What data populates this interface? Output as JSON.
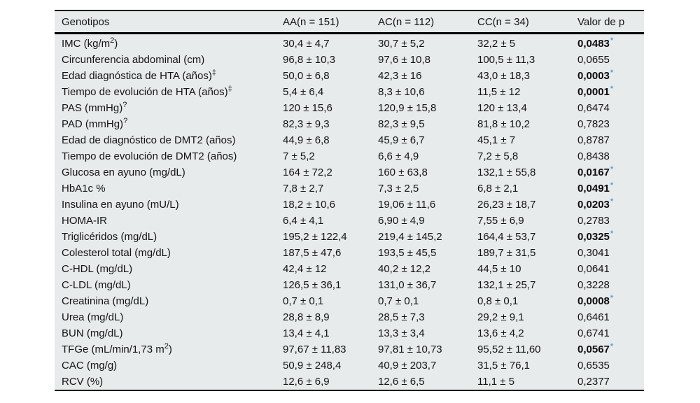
{
  "colors": {
    "table_background": "#e7ebec",
    "rule_color": "#000000",
    "text_color": "#141414",
    "significance_asterisk_blue": "#4da3dc"
  },
  "chart_data": {
    "type": "table",
    "significance_marker": "*",
    "headers": [
      "Genotipos",
      "AA(n = 151)",
      "AC(n = 112)",
      "CC(n = 34)",
      "Valor de p"
    ],
    "rows": [
      {
        "label_parts": [
          {
            "t": "IMC (kg/m"
          },
          {
            "t": "2",
            "sup": true
          },
          {
            "t": ")"
          }
        ],
        "values": [
          "30,4 ± 4,7",
          "30,7 ± 5,2",
          "32,2 ± 5"
        ],
        "p": "0,0483",
        "significant": true
      },
      {
        "label_parts": [
          {
            "t": "Circunferencia abdominal (cm)"
          }
        ],
        "values": [
          "96,8 ± 10,3",
          "97,6 ± 10,8",
          "100,5 ± 11,3"
        ],
        "p": "0,0655",
        "significant": false
      },
      {
        "label_parts": [
          {
            "t": "Edad diagnóstica de HTA (años)"
          },
          {
            "t": "‡",
            "sup": true
          }
        ],
        "values": [
          "50,0 ± 6,8",
          "42,3 ± 16",
          "43,0 ± 18,3"
        ],
        "p": "0,0003",
        "significant": true
      },
      {
        "label_parts": [
          {
            "t": "Tiempo de evolución de HTA (años)"
          },
          {
            "t": "‡",
            "sup": true
          }
        ],
        "values": [
          "5,4 ± 6,4",
          "8,3 ± 10,6",
          "11,5 ± 12"
        ],
        "p": "0,0001",
        "significant": true
      },
      {
        "label_parts": [
          {
            "t": "PAS (mmHg)"
          },
          {
            "t": "?",
            "sup": true
          }
        ],
        "values": [
          "120 ± 15,6",
          "120,9 ± 15,8",
          "120 ± 13,4"
        ],
        "p": "0,6474",
        "significant": false
      },
      {
        "label_parts": [
          {
            "t": "PAD (mmHg)"
          },
          {
            "t": "?",
            "sup": true
          }
        ],
        "values": [
          "82,3 ± 9,3",
          "82,3 ± 9,5",
          "81,8 ± 10,2"
        ],
        "p": "0,7823",
        "significant": false
      },
      {
        "label_parts": [
          {
            "t": "Edad de diagnóstico de DMT2 (años)"
          }
        ],
        "values": [
          "44,9 ± 6,8",
          "45,9 ± 6,7",
          "45,1 ± 7"
        ],
        "p": "0,8787",
        "significant": false
      },
      {
        "label_parts": [
          {
            "t": "Tiempo de evolución de DMT2 (años)"
          }
        ],
        "values": [
          "7 ± 5,2",
          "6,6 ± 4,9",
          "7,2 ± 5,8"
        ],
        "p": "0,8438",
        "significant": false
      },
      {
        "label_parts": [
          {
            "t": "Glucosa en ayuno (mg/dL)"
          }
        ],
        "values": [
          "164 ± 72,2",
          "160 ± 63,8",
          "132,1 ± 55,8"
        ],
        "p": "0,0167",
        "significant": true
      },
      {
        "label_parts": [
          {
            "t": "HbA1c %"
          }
        ],
        "values": [
          "7,8 ± 2,7",
          "7,3 ± 2,5",
          "6,8 ± 2,1"
        ],
        "p": "0,0491",
        "significant": true
      },
      {
        "label_parts": [
          {
            "t": "Insulina en ayuno (mU/L)"
          }
        ],
        "values": [
          "18,2 ± 10,6",
          "19,06 ± 11,6",
          "26,23 ± 18,7"
        ],
        "p": "0,0203",
        "significant": true
      },
      {
        "label_parts": [
          {
            "t": "HOMA-IR"
          }
        ],
        "values": [
          "6,4 ± 4,1",
          "6,90 ± 4,9",
          "7,55 ± 6,9"
        ],
        "p": "0,2783",
        "significant": false
      },
      {
        "label_parts": [
          {
            "t": "Triglicéridos (mg/dL)"
          }
        ],
        "values": [
          "195,2 ± 122,4",
          "219,4 ± 145,2",
          "164,4 ± 53,7"
        ],
        "p": "0,0325",
        "significant": true
      },
      {
        "label_parts": [
          {
            "t": "Colesterol total (mg/dL)"
          }
        ],
        "values": [
          "187,5 ± 47,6",
          "193,5 ± 45,5",
          "189,7 ± 31,5"
        ],
        "p": "0,3041",
        "significant": false
      },
      {
        "label_parts": [
          {
            "t": "C-HDL (mg/dL)"
          }
        ],
        "values": [
          "42,4 ± 12",
          "40,2 ± 12,2",
          "44,5 ± 10"
        ],
        "p": "0,0641",
        "significant": false
      },
      {
        "label_parts": [
          {
            "t": "C-LDL (mg/dL)"
          }
        ],
        "values": [
          "126,5 ± 36,1",
          "131,0 ± 36,7",
          "132,1 ± 25,7"
        ],
        "p": "0,3228",
        "significant": false
      },
      {
        "label_parts": [
          {
            "t": "Creatinina (mg/dL)"
          }
        ],
        "values": [
          "0,7 ± 0,1",
          "0,7 ± 0,1",
          "0,8 ± 0,1"
        ],
        "p": "0,0008",
        "significant": true
      },
      {
        "label_parts": [
          {
            "t": "Urea (mg/dL)"
          }
        ],
        "values": [
          "28,8 ± 8,9",
          "28,5 ± 7,3",
          "29,2 ± 9,1"
        ],
        "p": "0,6461",
        "significant": false
      },
      {
        "label_parts": [
          {
            "t": "BUN (mg/dL)"
          }
        ],
        "values": [
          "13,4 ± 4,1",
          "13,3 ± 3,4",
          "13,6 ± 4,2"
        ],
        "p": "0,6741",
        "significant": false
      },
      {
        "label_parts": [
          {
            "t": "TFGe (mL/min/1,73 m"
          },
          {
            "t": "2",
            "sup": true
          },
          {
            "t": ")"
          }
        ],
        "values": [
          "97,67 ± 11,83",
          "97,81 ± 10,73",
          "95,52 ± 11,60"
        ],
        "p": "0,0567",
        "significant": true
      },
      {
        "label_parts": [
          {
            "t": "CAC (mg/g)"
          }
        ],
        "values": [
          "50,9 ± 248,4",
          "40,9 ± 203,7",
          "31,5 ± 76,1"
        ],
        "p": "0,6535",
        "significant": false
      },
      {
        "label_parts": [
          {
            "t": "RCV (%)"
          }
        ],
        "values": [
          "12,6 ± 6,9",
          "12,6 ± 6,5",
          "11,1 ± 5"
        ],
        "p": "0,2377",
        "significant": false
      }
    ]
  }
}
